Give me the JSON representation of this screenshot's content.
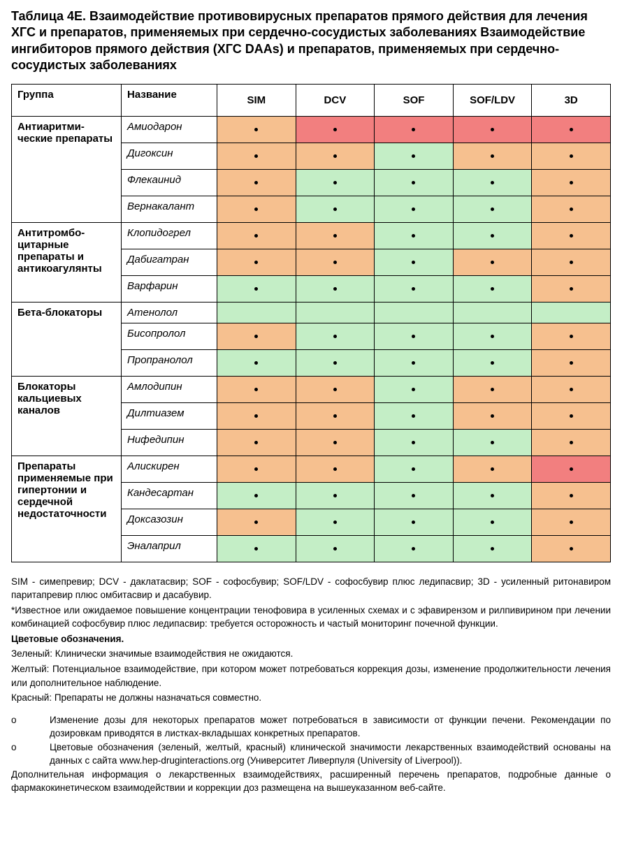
{
  "title": "Таблица  4E.  Взаимодействие противовирусных препаратов прямого действия для лечения ХГС и препаратов, применяемых при сердечно-сосудистых заболеваниях Взаимодействие ингибиторов прямого действия (ХГС DAAs) и препаратов, применяемых при сердечно-сосудистых заболеваниях",
  "colors": {
    "green": "#c4eec6",
    "orange": "#f6c08f",
    "red": "#f27f7f"
  },
  "header": {
    "group": "Группа",
    "name": "Название",
    "drugs": [
      "SIM",
      "DCV",
      "SOF",
      "SOF/LDV",
      "3D"
    ]
  },
  "groups": [
    {
      "label": "Антиаритми-ческие препараты",
      "rows": [
        {
          "name": "Амиодарон",
          "cells": [
            "orange",
            "red",
            "red",
            "red",
            "red"
          ]
        },
        {
          "name": "Дигоксин",
          "cells": [
            "orange",
            "orange",
            "green",
            "orange",
            "orange"
          ]
        },
        {
          "name": "Флекаинид",
          "cells": [
            "orange",
            "green",
            "green",
            "green",
            "orange"
          ]
        },
        {
          "name": "Вернакалант",
          "cells": [
            "orange",
            "green",
            "green",
            "green",
            "orange"
          ]
        }
      ]
    },
    {
      "label": "Антитромбо-цитарные препараты и антикоагулянты",
      "rows": [
        {
          "name": "Клопидогрел",
          "cells": [
            "orange",
            "orange",
            "green",
            "green",
            "orange"
          ]
        },
        {
          "name": "Дабигатран",
          "cells": [
            "orange",
            "orange",
            "green",
            "orange",
            "orange"
          ]
        },
        {
          "name": "Варфарин",
          "cells": [
            "green",
            "green",
            "green",
            "green",
            "orange"
          ]
        }
      ]
    },
    {
      "label": "Бета-блокаторы",
      "rows": [
        {
          "name": "Атенолол",
          "cells": [
            "green",
            "green",
            "green",
            "green",
            "green"
          ],
          "no_dot": true
        },
        {
          "name": "Бисопролол",
          "cells": [
            "orange",
            "green",
            "green",
            "green",
            "orange"
          ]
        },
        {
          "name": "Пропранолол",
          "cells": [
            "green",
            "green",
            "green",
            "green",
            "orange"
          ]
        }
      ]
    },
    {
      "label": "Блокаторы кальциевых каналов",
      "rows": [
        {
          "name": "Амлодипин",
          "cells": [
            "orange",
            "orange",
            "green",
            "orange",
            "orange"
          ]
        },
        {
          "name": "Дилтиазем",
          "cells": [
            "orange",
            "orange",
            "green",
            "orange",
            "orange"
          ]
        },
        {
          "name": "Нифедипин",
          "cells": [
            "orange",
            "orange",
            "green",
            "green",
            "orange"
          ]
        }
      ]
    },
    {
      "label": "Препараты применяемые при гипертонии и сердечной недостаточности",
      "rows": [
        {
          "name": "Алискирен",
          "cells": [
            "orange",
            "orange",
            "green",
            "orange",
            "red"
          ]
        },
        {
          "name": "Кандесартан",
          "cells": [
            "green",
            "green",
            "green",
            "green",
            "orange"
          ]
        },
        {
          "name": "Доксазозин",
          "cells": [
            "orange",
            "green",
            "green",
            "green",
            "orange"
          ]
        },
        {
          "name": "Эналаприл",
          "cells": [
            "green",
            "green",
            "green",
            "green",
            "orange"
          ]
        }
      ]
    }
  ],
  "legend": {
    "abbr": "SIM - симепревир; DCV - даклатасвир; SOF - софосбувир; SOF/LDV - софосбувир плюс ледипасвир; 3D - усиленный ритонавиром паритапревир плюс омбитасвир и дасабувир.",
    "star": "*Известное или ожидаемое повышение концентрации тенофовира в усиленных схемах и с эфавирензом и рилпивирином при лечении комбинацией софосбувир плюс ледипасвир: требуется осторожность и частый мониторинг почечной функции.",
    "colors_title": "Цветовые обозначения.",
    "green_text": "Зеленый: Клинически значимые взаимодействия не ожидаются.",
    "yellow_text": "Желтый: Потенциальное взаимодействие, при котором может потребоваться коррекция дозы, изменение продолжительности лечения или дополнительное наблюдение.",
    "red_text": "Красный: Препараты не должны назначаться совместно.",
    "bullet1": "Изменение дозы для некоторых препаратов может потребоваться в зависимости от функции печени. Рекомендации по дозировкам приводятся в листках-вкладышах конкретных препаратов.",
    "bullet2": "Цветовые обозначения (зеленый, желтый, красный) клинической значимости лекарственных взаимодействий основаны на данных с сайта  www.hep-druginteractions.org (Университет Ливерпуля (University of Liverpool)).",
    "extra": "Дополнительная информация о лекарственных взаимодействиях, расширенный перечень препаратов, подробные данные о фармакокинетическом взаимодействии и коррекции доз размещена на вышеуказанном веб-сайте.",
    "bullet_mark": "o"
  }
}
